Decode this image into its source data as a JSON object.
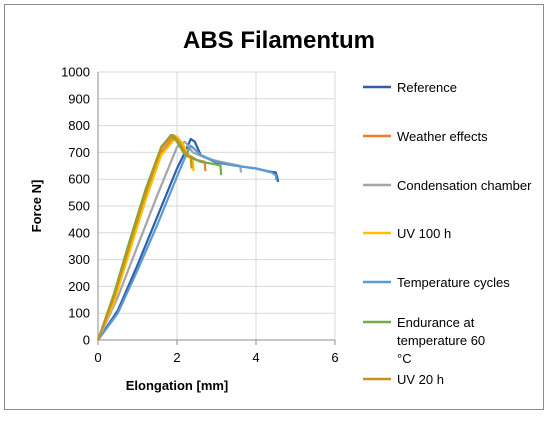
{
  "chart_data": {
    "type": "line",
    "title": "ABS Filamentum",
    "xlabel": "Elongation [mm]",
    "ylabel": "Force N]",
    "xlim": [
      0,
      6
    ],
    "ylim": [
      0,
      1000
    ],
    "xticks": [
      0,
      2,
      4,
      6
    ],
    "yticks": [
      0,
      100,
      200,
      300,
      400,
      500,
      600,
      700,
      800,
      900,
      1000
    ],
    "grid": true,
    "legend_position": "right",
    "series": [
      {
        "name": "Reference",
        "color": "#2e5fa7",
        "x": [
          0,
          0.5,
          1.0,
          1.5,
          2.0,
          2.2,
          2.35,
          2.45,
          2.6,
          3.0,
          3.5,
          4.0,
          4.3,
          4.5,
          4.55,
          4.56
        ],
        "y": [
          0,
          110,
          280,
          460,
          640,
          700,
          750,
          740,
          690,
          662,
          650,
          640,
          630,
          625,
          600,
          590
        ]
      },
      {
        "name": "Weather effects",
        "color": "#ed7d31",
        "x": [
          0,
          0.4,
          0.8,
          1.2,
          1.6,
          1.95,
          2.1,
          2.3,
          2.5,
          2.7,
          2.72
        ],
        "y": [
          0,
          150,
          340,
          530,
          700,
          760,
          740,
          690,
          672,
          665,
          630
        ]
      },
      {
        "name": "Condensation chamber",
        "color": "#a5a5a5",
        "x": [
          0,
          0.5,
          1.0,
          1.5,
          2.0,
          2.2,
          2.4,
          2.8,
          3.2,
          3.6,
          3.62
        ],
        "y": [
          0,
          160,
          350,
          540,
          720,
          740,
          700,
          675,
          662,
          650,
          625
        ]
      },
      {
        "name": "UV 100 h",
        "color": "#ffc000",
        "x": [
          0,
          0.4,
          0.8,
          1.2,
          1.6,
          2.0,
          2.15,
          2.3,
          2.4,
          2.42
        ],
        "y": [
          0,
          140,
          330,
          520,
          690,
          760,
          730,
          690,
          670,
          630
        ]
      },
      {
        "name": "Temperature cycles",
        "color": "#5b9bd5",
        "x": [
          0,
          0.5,
          1.0,
          1.5,
          2.0,
          2.2,
          2.35,
          2.6,
          3.0,
          3.5,
          4.0,
          4.4,
          4.5,
          4.52
        ],
        "y": [
          0,
          100,
          260,
          430,
          610,
          680,
          725,
          690,
          665,
          650,
          640,
          625,
          615,
          595
        ]
      },
      {
        "name": "Endurance at temperature 60 °C",
        "color": "#70ad47",
        "x": [
          0,
          0.4,
          0.8,
          1.2,
          1.6,
          1.85,
          2.0,
          2.2,
          2.6,
          3.0,
          3.1,
          3.12
        ],
        "y": [
          0,
          170,
          370,
          560,
          720,
          765,
          740,
          690,
          665,
          655,
          650,
          615
        ]
      },
      {
        "name": "UV 20 h",
        "color": "#c9901b",
        "x": [
          0,
          0.4,
          0.8,
          1.2,
          1.6,
          1.9,
          2.05,
          2.2,
          2.35,
          2.37
        ],
        "y": [
          0,
          160,
          355,
          545,
          715,
          765,
          740,
          700,
          680,
          640
        ]
      }
    ]
  }
}
